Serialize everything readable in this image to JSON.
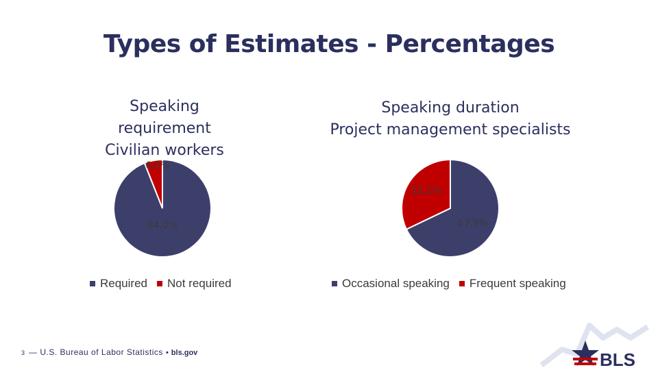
{
  "slide": {
    "title": "Types of Estimates - Percentages",
    "page_number": "3",
    "footer_org": "— U.S. Bureau of Labor Statistics",
    "footer_sep": "•",
    "footer_site": "bls.gov",
    "logo_text": "BLS"
  },
  "colors": {
    "navy": "#3d3f6b",
    "red": "#c00000",
    "title": "#2b2f5e"
  },
  "chart_data": [
    {
      "type": "pie",
      "title_lines": [
        "Speaking requirement",
        "Civilian workers"
      ],
      "categories": [
        "Required",
        "Not required"
      ],
      "values": [
        94.0,
        6.0
      ],
      "labels": [
        "94,0%",
        "6,0%"
      ],
      "colors": [
        "#3d3f6b",
        "#c00000"
      ],
      "legend": "bottom"
    },
    {
      "type": "pie",
      "title_lines": [
        "Speaking duration",
        "Project management specialists"
      ],
      "categories": [
        "Occasional speaking",
        "Frequent speaking"
      ],
      "values": [
        67.9,
        32.1
      ],
      "labels": [
        "67,9%",
        "32,1%"
      ],
      "colors": [
        "#3d3f6b",
        "#c00000"
      ],
      "legend": "bottom"
    }
  ]
}
